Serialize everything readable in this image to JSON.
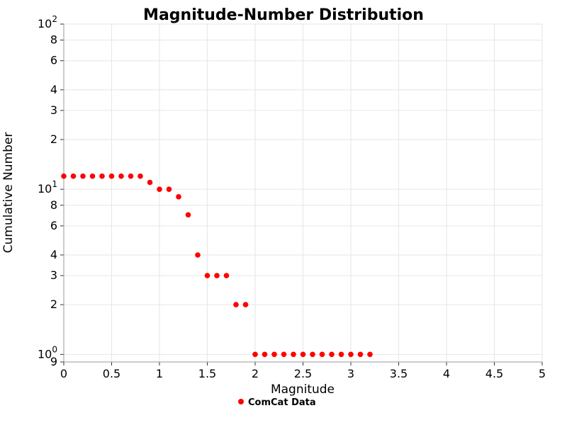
{
  "chart_data": {
    "type": "scatter",
    "title": "Magnitude-Number Distribution",
    "xlabel": "Magnitude",
    "ylabel": "Cumulative Number",
    "x_scale": "linear",
    "y_scale": "log",
    "xlim": [
      0,
      5
    ],
    "ylim": [
      0.9,
      100
    ],
    "grid": true,
    "colors": {
      "marker": "#ff0000",
      "grid": "#e6e6e6",
      "text": "#000000"
    },
    "x_ticks": [
      {
        "value": 0,
        "label": "0"
      },
      {
        "value": 0.5,
        "label": "0.5"
      },
      {
        "value": 1,
        "label": "1"
      },
      {
        "value": 1.5,
        "label": "1.5"
      },
      {
        "value": 2,
        "label": "2"
      },
      {
        "value": 2.5,
        "label": "2.5"
      },
      {
        "value": 3,
        "label": "3"
      },
      {
        "value": 3.5,
        "label": "3.5"
      },
      {
        "value": 4,
        "label": "4"
      },
      {
        "value": 4.5,
        "label": "4.5"
      },
      {
        "value": 5,
        "label": "5"
      }
    ],
    "y_ticks": [
      {
        "value": 100,
        "label": "10",
        "exp": "2"
      },
      {
        "value": 80,
        "label": "8"
      },
      {
        "value": 60,
        "label": "6"
      },
      {
        "value": 40,
        "label": "4"
      },
      {
        "value": 30,
        "label": "3"
      },
      {
        "value": 20,
        "label": "2"
      },
      {
        "value": 10,
        "label": "10",
        "exp": "1"
      },
      {
        "value": 8,
        "label": "8"
      },
      {
        "value": 6,
        "label": "6"
      },
      {
        "value": 4,
        "label": "4"
      },
      {
        "value": 3,
        "label": "3"
      },
      {
        "value": 2,
        "label": "2"
      },
      {
        "value": 1,
        "label": "10",
        "exp": "0"
      },
      {
        "value": 0.9,
        "label": "9"
      }
    ],
    "legend": {
      "position": "bottom-center",
      "items": [
        {
          "label": "ComCat Data",
          "color": "#ff0000",
          "marker": "circle"
        }
      ]
    },
    "series": [
      {
        "name": "ComCat Data",
        "color": "#ff0000",
        "marker": "circle",
        "points": [
          [
            0.0,
            12
          ],
          [
            0.1,
            12
          ],
          [
            0.2,
            12
          ],
          [
            0.3,
            12
          ],
          [
            0.4,
            12
          ],
          [
            0.5,
            12
          ],
          [
            0.6,
            12
          ],
          [
            0.7,
            12
          ],
          [
            0.8,
            12
          ],
          [
            0.9,
            11
          ],
          [
            1.0,
            10
          ],
          [
            1.1,
            10
          ],
          [
            1.2,
            9
          ],
          [
            1.3,
            7
          ],
          [
            1.4,
            4
          ],
          [
            1.5,
            3
          ],
          [
            1.6,
            3
          ],
          [
            1.7,
            3
          ],
          [
            1.8,
            2
          ],
          [
            1.9,
            2
          ],
          [
            2.0,
            1
          ],
          [
            2.1,
            1
          ],
          [
            2.2,
            1
          ],
          [
            2.3,
            1
          ],
          [
            2.4,
            1
          ],
          [
            2.5,
            1
          ],
          [
            2.6,
            1
          ],
          [
            2.7,
            1
          ],
          [
            2.8,
            1
          ],
          [
            2.9,
            1
          ],
          [
            3.0,
            1
          ],
          [
            3.1,
            1
          ],
          [
            3.2,
            1
          ]
        ]
      }
    ]
  }
}
